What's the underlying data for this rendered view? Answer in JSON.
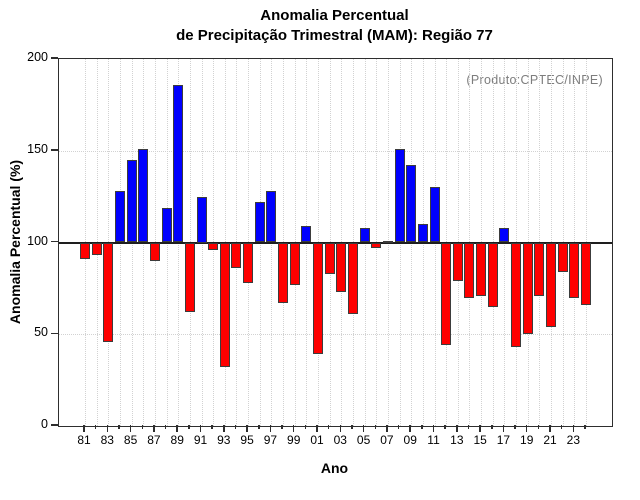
{
  "chart": {
    "title_line1": "Anomalia Percentual",
    "title_line2": "de Precipitação Trimestral (MAM): Região 77",
    "annotation": "(Produto:CPTEC/INPE)",
    "xlabel": "Ano",
    "ylabel": "Anomalia Percentual (%)"
  },
  "chart_data": {
    "type": "bar",
    "title": "Anomalia Percentual de Precipitação Trimestral (MAM): Região 77",
    "xlabel": "Ano",
    "ylabel": "Anomalia Percentual (%)",
    "annotation": "(Produto:CPTEC/INPE)",
    "baseline": 100,
    "ylim": [
      0,
      200
    ],
    "yticks": [
      0,
      50,
      100,
      150,
      200
    ],
    "h_gridlines": [
      50,
      150
    ],
    "grid": "dotted light-gray, vertical line at every year, horizontals at 50 and 150, solid black line at 100",
    "legend": null,
    "colors": {
      "above_baseline": "#0000fe",
      "below_baseline": "#fe0000",
      "bar_border": "#3c3c3c",
      "gridline": "#d2d2d2",
      "annotation_text": "#7d7d7d",
      "axis": "#2e2e2e"
    },
    "x": [
      "81",
      "82",
      "83",
      "84",
      "85",
      "86",
      "87",
      "88",
      "89",
      "90",
      "91",
      "92",
      "93",
      "94",
      "95",
      "96",
      "97",
      "98",
      "99",
      "00",
      "01",
      "02",
      "03",
      "04",
      "05",
      "06",
      "07",
      "08",
      "09",
      "10",
      "11",
      "12",
      "13",
      "14",
      "15",
      "16",
      "17",
      "18",
      "19",
      "20",
      "21",
      "22",
      "23",
      "24"
    ],
    "values": [
      91,
      93,
      46,
      128,
      145,
      151,
      90,
      119,
      186,
      62,
      125,
      96,
      32,
      86,
      78,
      122,
      128,
      67,
      77,
      109,
      39,
      83,
      73,
      61,
      108,
      97,
      101,
      151,
      142,
      110,
      130,
      44,
      79,
      70,
      71,
      65,
      108,
      43,
      50,
      71,
      54,
      84,
      70,
      66
    ],
    "labeled_ticks": [
      "81",
      "83",
      "85",
      "87",
      "89",
      "91",
      "93",
      "95",
      "97",
      "99",
      "01",
      "03",
      "05",
      "07",
      "09",
      "11",
      "13",
      "15",
      "17",
      "19",
      "21",
      "23"
    ]
  }
}
